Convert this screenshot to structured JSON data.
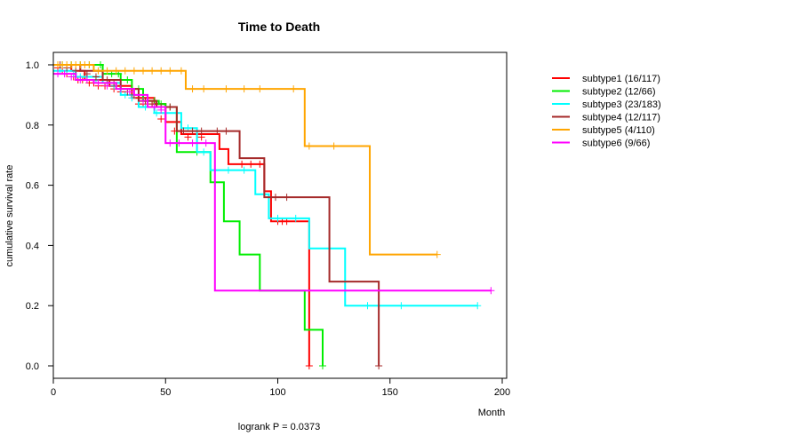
{
  "chart_data": {
    "type": "line",
    "title": "Time to Death",
    "xlabel": "Month",
    "ylabel": "cumulative survival rate",
    "annotation": "logrank P = 0.0373",
    "xlim": [
      0,
      200
    ],
    "ylim": [
      0,
      1
    ],
    "xticks": [
      0,
      50,
      100,
      150,
      200
    ],
    "yticks": [
      0.0,
      0.2,
      0.4,
      0.6,
      0.8,
      1.0
    ],
    "grid": false,
    "legend_position": "right",
    "series": [
      {
        "name": "subtype1 (16/117)",
        "color": "#ff0000",
        "steps": [
          [
            0,
            1.0
          ],
          [
            8,
            0.98
          ],
          [
            14,
            0.95
          ],
          [
            25,
            0.93
          ],
          [
            35,
            0.89
          ],
          [
            45,
            0.87
          ],
          [
            50,
            0.81
          ],
          [
            57,
            0.77
          ],
          [
            68,
            0.77
          ],
          [
            74,
            0.72
          ],
          [
            78,
            0.67
          ],
          [
            94,
            0.67
          ],
          [
            94,
            0.58
          ],
          [
            97,
            0.58
          ],
          [
            97,
            0.48
          ],
          [
            114,
            0.48
          ],
          [
            114,
            0.0
          ]
        ],
        "censors": [
          [
            2,
            0.99
          ],
          [
            4,
            0.98
          ],
          [
            6,
            0.97
          ],
          [
            9,
            0.96
          ],
          [
            11,
            0.95
          ],
          [
            13,
            0.95
          ],
          [
            16,
            0.94
          ],
          [
            18,
            0.94
          ],
          [
            20,
            0.93
          ],
          [
            23,
            0.93
          ],
          [
            27,
            0.92
          ],
          [
            30,
            0.91
          ],
          [
            38,
            0.87
          ],
          [
            40,
            0.87
          ],
          [
            44,
            0.87
          ],
          [
            48,
            0.82
          ],
          [
            54,
            0.78
          ],
          [
            60,
            0.76
          ],
          [
            66,
            0.76
          ],
          [
            84,
            0.67
          ],
          [
            88,
            0.67
          ],
          [
            92,
            0.67
          ],
          [
            100,
            0.48
          ],
          [
            102,
            0.48
          ],
          [
            104,
            0.48
          ],
          [
            114,
            0.0
          ]
        ]
      },
      {
        "name": "subtype2 (12/66)",
        "color": "#00ee00",
        "steps": [
          [
            0,
            1.0
          ],
          [
            22,
            0.97
          ],
          [
            30,
            0.95
          ],
          [
            35,
            0.92
          ],
          [
            40,
            0.88
          ],
          [
            47,
            0.87
          ],
          [
            50,
            0.86
          ],
          [
            55,
            0.71
          ],
          [
            70,
            0.71
          ],
          [
            70,
            0.61
          ],
          [
            76,
            0.61
          ],
          [
            76,
            0.48
          ],
          [
            83,
            0.48
          ],
          [
            83,
            0.37
          ],
          [
            92,
            0.37
          ],
          [
            92,
            0.25
          ],
          [
            112,
            0.25
          ],
          [
            112,
            0.12
          ],
          [
            120,
            0.12
          ],
          [
            120,
            0.0
          ]
        ],
        "censors": [
          [
            4,
            1.0
          ],
          [
            8,
            1.0
          ],
          [
            12,
            1.0
          ],
          [
            16,
            1.0
          ],
          [
            21,
            1.0
          ],
          [
            26,
            0.97
          ],
          [
            29,
            0.97
          ],
          [
            33,
            0.95
          ],
          [
            38,
            0.92
          ],
          [
            42,
            0.88
          ],
          [
            45,
            0.88
          ],
          [
            48,
            0.87
          ],
          [
            52,
            0.86
          ],
          [
            64,
            0.71
          ],
          [
            120,
            0.0
          ]
        ]
      },
      {
        "name": "subtype3 (23/183)",
        "color": "#00ffff",
        "steps": [
          [
            0,
            0.98
          ],
          [
            10,
            0.96
          ],
          [
            22,
            0.94
          ],
          [
            30,
            0.9
          ],
          [
            38,
            0.86
          ],
          [
            45,
            0.84
          ],
          [
            52,
            0.84
          ],
          [
            57,
            0.79
          ],
          [
            64,
            0.79
          ],
          [
            64,
            0.71
          ],
          [
            70,
            0.71
          ],
          [
            70,
            0.65
          ],
          [
            90,
            0.65
          ],
          [
            90,
            0.57
          ],
          [
            96,
            0.57
          ],
          [
            96,
            0.49
          ],
          [
            114,
            0.49
          ],
          [
            114,
            0.39
          ],
          [
            130,
            0.39
          ],
          [
            130,
            0.2
          ],
          [
            189,
            0.2
          ]
        ],
        "censors": [
          [
            3,
            0.98
          ],
          [
            6,
            0.98
          ],
          [
            9,
            0.97
          ],
          [
            12,
            0.96
          ],
          [
            15,
            0.96
          ],
          [
            19,
            0.95
          ],
          [
            24,
            0.94
          ],
          [
            27,
            0.93
          ],
          [
            32,
            0.9
          ],
          [
            35,
            0.89
          ],
          [
            41,
            0.86
          ],
          [
            46,
            0.84
          ],
          [
            50,
            0.84
          ],
          [
            55,
            0.84
          ],
          [
            60,
            0.79
          ],
          [
            67,
            0.71
          ],
          [
            72,
            0.65
          ],
          [
            78,
            0.65
          ],
          [
            85,
            0.65
          ],
          [
            100,
            0.49
          ],
          [
            108,
            0.49
          ],
          [
            130,
            0.25
          ],
          [
            140,
            0.2
          ],
          [
            155,
            0.2
          ],
          [
            189,
            0.2
          ]
        ]
      },
      {
        "name": "subtype4 (12/117)",
        "color": "#a52a2a",
        "steps": [
          [
            0,
            1.0
          ],
          [
            12,
            0.98
          ],
          [
            22,
            0.95
          ],
          [
            30,
            0.92
          ],
          [
            38,
            0.88
          ],
          [
            46,
            0.86
          ],
          [
            55,
            0.78
          ],
          [
            83,
            0.78
          ],
          [
            83,
            0.69
          ],
          [
            94,
            0.69
          ],
          [
            94,
            0.56
          ],
          [
            123,
            0.56
          ],
          [
            123,
            0.28
          ],
          [
            145,
            0.28
          ],
          [
            145,
            0.0
          ]
        ],
        "censors": [
          [
            3,
            1.0
          ],
          [
            6,
            0.99
          ],
          [
            10,
            0.98
          ],
          [
            15,
            0.97
          ],
          [
            19,
            0.96
          ],
          [
            24,
            0.95
          ],
          [
            27,
            0.94
          ],
          [
            33,
            0.91
          ],
          [
            36,
            0.9
          ],
          [
            41,
            0.88
          ],
          [
            44,
            0.87
          ],
          [
            48,
            0.86
          ],
          [
            52,
            0.86
          ],
          [
            58,
            0.78
          ],
          [
            62,
            0.78
          ],
          [
            66,
            0.78
          ],
          [
            73,
            0.78
          ],
          [
            77,
            0.78
          ],
          [
            99,
            0.56
          ],
          [
            104,
            0.56
          ],
          [
            145,
            0.0
          ]
        ]
      },
      {
        "name": "subtype5 (4/110)",
        "color": "#ffa500",
        "steps": [
          [
            0,
            1.0
          ],
          [
            18,
            0.98
          ],
          [
            55,
            0.98
          ],
          [
            59,
            0.92
          ],
          [
            112,
            0.92
          ],
          [
            112,
            0.73
          ],
          [
            141,
            0.73
          ],
          [
            141,
            0.37
          ],
          [
            171,
            0.37
          ]
        ],
        "censors": [
          [
            2,
            1.0
          ],
          [
            4,
            1.0
          ],
          [
            6,
            1.0
          ],
          [
            8,
            1.0
          ],
          [
            10,
            1.0
          ],
          [
            12,
            1.0
          ],
          [
            14,
            1.0
          ],
          [
            16,
            1.0
          ],
          [
            20,
            0.98
          ],
          [
            24,
            0.98
          ],
          [
            28,
            0.98
          ],
          [
            32,
            0.98
          ],
          [
            36,
            0.98
          ],
          [
            40,
            0.98
          ],
          [
            44,
            0.98
          ],
          [
            48,
            0.98
          ],
          [
            52,
            0.98
          ],
          [
            57,
            0.98
          ],
          [
            62,
            0.92
          ],
          [
            67,
            0.92
          ],
          [
            77,
            0.92
          ],
          [
            85,
            0.92
          ],
          [
            92,
            0.92
          ],
          [
            107,
            0.92
          ],
          [
            114,
            0.73
          ],
          [
            125,
            0.73
          ],
          [
            171,
            0.37
          ]
        ]
      },
      {
        "name": "subtype6 (9/66)",
        "color": "#ff00ff",
        "steps": [
          [
            0,
            0.97
          ],
          [
            10,
            0.95
          ],
          [
            18,
            0.94
          ],
          [
            28,
            0.92
          ],
          [
            36,
            0.9
          ],
          [
            42,
            0.86
          ],
          [
            50,
            0.74
          ],
          [
            66,
            0.74
          ],
          [
            72,
            0.74
          ],
          [
            72,
            0.25
          ],
          [
            195,
            0.25
          ]
        ],
        "censors": [
          [
            2,
            0.97
          ],
          [
            5,
            0.97
          ],
          [
            8,
            0.96
          ],
          [
            12,
            0.95
          ],
          [
            15,
            0.95
          ],
          [
            20,
            0.94
          ],
          [
            24,
            0.93
          ],
          [
            30,
            0.92
          ],
          [
            34,
            0.91
          ],
          [
            40,
            0.88
          ],
          [
            45,
            0.86
          ],
          [
            48,
            0.85
          ],
          [
            52,
            0.74
          ],
          [
            56,
            0.74
          ],
          [
            62,
            0.74
          ],
          [
            68,
            0.74
          ],
          [
            195,
            0.25
          ]
        ]
      }
    ]
  }
}
